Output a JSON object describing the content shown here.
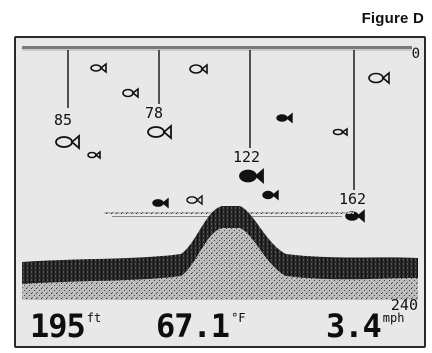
{
  "figure_label": "Figure D",
  "depth_scale": {
    "top": "0",
    "bottom": "240"
  },
  "fish_depths": [
    "85",
    "78",
    "122",
    "162"
  ],
  "readouts": {
    "depth": {
      "value": "195",
      "unit": "ft"
    },
    "temperature": {
      "value": "67.1",
      "unit": "°F"
    },
    "speed": {
      "value": "3.4",
      "unit": "mph"
    }
  },
  "icons": {
    "fish": "fish-icon",
    "fish_small": "small-fish-icon"
  },
  "colors": {
    "screen_background": "#e8e8e8",
    "ink": "#111111"
  }
}
